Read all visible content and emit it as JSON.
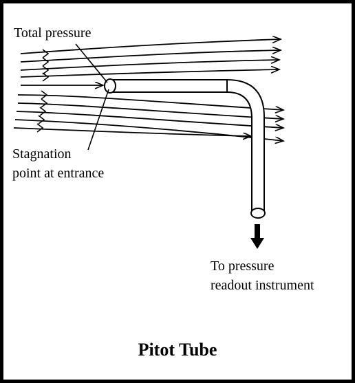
{
  "diagram": {
    "title": "Pitot Tube",
    "labels": {
      "total_pressure": "Total pressure",
      "stagnation_line1": "Stagnation",
      "stagnation_line2": "point at entrance",
      "readout_line1": "To pressure",
      "readout_line2": "readout instrument"
    },
    "colors": {
      "background": "#ffffff",
      "border": "#000000",
      "ink": "#000000"
    }
  }
}
